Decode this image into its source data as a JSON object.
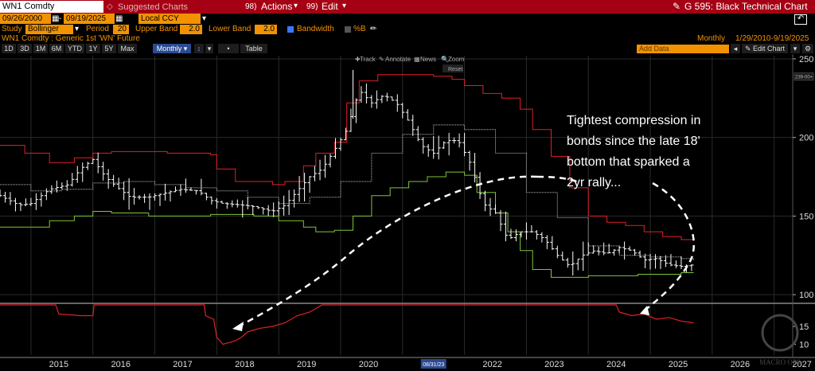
{
  "header": {
    "ticker_input": "WN1 Comdty",
    "suggested_charts": "Suggested Charts",
    "actions_label": "Actions",
    "actions_num": "98)",
    "edit_label": "Edit",
    "edit_num": "99)",
    "function_title": "G 595: Black Technical Chart"
  },
  "toolbar1": {
    "start_date": "09/26/2000",
    "end_date": "09/19/2025",
    "currency": "Local CCY"
  },
  "toolbar2": {
    "study_label": "Study",
    "study_value": "Bollinger",
    "period_label": "Period",
    "period_value": "20",
    "upper_label": "Upper Band",
    "upper_value": "2.0",
    "lower_label": "Lower Band",
    "lower_value": "2.0",
    "bandwidth_label": "Bandwidth",
    "percent_b_label": "%B"
  },
  "toolbar3": {
    "security_desc": "WN1 Comdty : Generic 1st 'WN' Future",
    "period_name": "Monthly",
    "date_range": "1/29/2010-9/19/2025"
  },
  "toolbar4": {
    "ranges": [
      "1D",
      "3D",
      "1M",
      "6M",
      "YTD",
      "1Y",
      "5Y",
      "Max"
    ],
    "frequency": "Monthly",
    "table_label": "Table",
    "add_data_placeholder": "Add Data",
    "edit_chart_label": "Edit Chart"
  },
  "chart_tools": {
    "track": "Track",
    "annotate": "Annotate",
    "news": "News",
    "zoom": "Zoom",
    "reset": "Reset"
  },
  "annotation": {
    "text_lines": [
      "Tightest compression in",
      "bonds since the late 18'",
      "bottom that sparked a",
      "2yr rally..."
    ]
  },
  "watermark": "MACRO OPS",
  "last_price_tag": "239-00+",
  "hover_date_tag": "08/31/23",
  "colors": {
    "titlebar": "#a50013",
    "accent_orange": "#f39200",
    "upper_band": "#e0202a",
    "lower_band": "#7fc53a",
    "moving_average": "#bfbfbf",
    "price_bars": "#ffffff",
    "bandwidth_line": "#e0202a"
  },
  "chart_data": [
    {
      "type": "line",
      "subtype": "ohlc-bars-with-bollinger-bands",
      "frequency": "monthly",
      "ylim": [
        95,
        252
      ],
      "yticks": [
        100,
        150,
        200,
        250
      ],
      "xticks": [
        "2015",
        "2016",
        "2017",
        "2018",
        "2019",
        "2020",
        "2021",
        "2022",
        "2023",
        "2024",
        "2025",
        "2026",
        "2027"
      ],
      "x_range_years": [
        2014.5,
        2027.3
      ],
      "grid": true,
      "series": [
        {
          "name": "Upper Band",
          "points": [
            [
              2014.5,
              195
            ],
            [
              2014.9,
              190
            ],
            [
              2015.3,
              184
            ],
            [
              2015.7,
              187
            ],
            [
              2016.0,
              190
            ],
            [
              2016.3,
              191
            ],
            [
              2016.9,
              191
            ],
            [
              2017.2,
              190
            ],
            [
              2017.9,
              189
            ],
            [
              2018.0,
              180
            ],
            [
              2018.3,
              172
            ],
            [
              2018.9,
              170
            ],
            [
              2019.1,
              172
            ],
            [
              2019.4,
              182
            ],
            [
              2019.6,
              190
            ],
            [
              2019.9,
              197
            ],
            [
              2020.1,
              222
            ],
            [
              2020.3,
              236
            ],
            [
              2020.6,
              240
            ],
            [
              2020.9,
              240
            ],
            [
              2021.2,
              240
            ],
            [
              2021.5,
              239
            ],
            [
              2021.8,
              237
            ],
            [
              2022.0,
              233
            ],
            [
              2022.3,
              228
            ],
            [
              2022.6,
              225
            ],
            [
              2022.9,
              218
            ],
            [
              2023.1,
              205
            ],
            [
              2023.4,
              188
            ],
            [
              2023.7,
              168
            ],
            [
              2024.0,
              150
            ],
            [
              2024.3,
              146
            ],
            [
              2024.6,
              144
            ],
            [
              2024.9,
              140
            ],
            [
              2025.2,
              137
            ],
            [
              2025.5,
              135
            ],
            [
              2025.7,
              134
            ]
          ]
        },
        {
          "name": "Lower Band",
          "points": [
            [
              2014.5,
              143
            ],
            [
              2014.9,
              143
            ],
            [
              2015.3,
              147
            ],
            [
              2015.7,
              150
            ],
            [
              2016.0,
              153
            ],
            [
              2016.3,
              152
            ],
            [
              2016.9,
              150
            ],
            [
              2017.2,
              150
            ],
            [
              2017.9,
              151
            ],
            [
              2018.2,
              151
            ],
            [
              2018.6,
              150
            ],
            [
              2019.0,
              147
            ],
            [
              2019.4,
              143
            ],
            [
              2019.6,
              140
            ],
            [
              2019.9,
              141
            ],
            [
              2020.2,
              150
            ],
            [
              2020.5,
              163
            ],
            [
              2020.8,
              168
            ],
            [
              2021.1,
              172
            ],
            [
              2021.4,
              175
            ],
            [
              2021.7,
              178
            ],
            [
              2022.0,
              176
            ],
            [
              2022.2,
              165
            ],
            [
              2022.5,
              152
            ],
            [
              2022.7,
              140
            ],
            [
              2022.9,
              128
            ],
            [
              2023.1,
              116
            ],
            [
              2023.4,
              111
            ],
            [
              2023.7,
              111
            ],
            [
              2024.0,
              112
            ],
            [
              2024.4,
              112
            ],
            [
              2024.8,
              113
            ],
            [
              2025.2,
              113
            ],
            [
              2025.5,
              114
            ],
            [
              2025.7,
              114
            ]
          ]
        },
        {
          "name": "Moving Average",
          "points": [
            [
              2014.5,
              170
            ],
            [
              2015.0,
              166
            ],
            [
              2015.5,
              167
            ],
            [
              2016.0,
              171
            ],
            [
              2016.5,
              172
            ],
            [
              2017.0,
              170
            ],
            [
              2017.5,
              168
            ],
            [
              2018.0,
              166
            ],
            [
              2018.5,
              162
            ],
            [
              2019.0,
              158
            ],
            [
              2019.5,
              162
            ],
            [
              2020.0,
              172
            ],
            [
              2020.5,
              190
            ],
            [
              2021.0,
              202
            ],
            [
              2021.5,
              208
            ],
            [
              2022.0,
              205
            ],
            [
              2022.5,
              190
            ],
            [
              2023.0,
              165
            ],
            [
              2023.5,
              149
            ],
            [
              2024.0,
              131
            ],
            [
              2024.5,
              125
            ],
            [
              2025.0,
              124
            ],
            [
              2025.5,
              123
            ],
            [
              2025.7,
              122
            ]
          ]
        },
        {
          "name": "Price",
          "points": [
            [
              2014.5,
              163
            ],
            [
              2014.8,
              157
            ],
            [
              2015.0,
              158
            ],
            [
              2015.3,
              167
            ],
            [
              2015.6,
              170
            ],
            [
              2015.8,
              180
            ],
            [
              2016.0,
              186
            ],
            [
              2016.2,
              175
            ],
            [
              2016.4,
              168
            ],
            [
              2016.6,
              162
            ],
            [
              2016.9,
              162
            ],
            [
              2017.1,
              164
            ],
            [
              2017.4,
              167
            ],
            [
              2017.7,
              166
            ],
            [
              2017.9,
              160
            ],
            [
              2018.1,
              158
            ],
            [
              2018.4,
              157
            ],
            [
              2018.6,
              156
            ],
            [
              2018.9,
              153
            ],
            [
              2019.1,
              157
            ],
            [
              2019.3,
              166
            ],
            [
              2019.5,
              175
            ],
            [
              2019.7,
              180
            ],
            [
              2019.9,
              192
            ],
            [
              2020.1,
              205
            ],
            [
              2020.3,
              230
            ],
            [
              2020.5,
              222
            ],
            [
              2020.7,
              227
            ],
            [
              2020.9,
              222
            ],
            [
              2021.1,
              210
            ],
            [
              2021.3,
              195
            ],
            [
              2021.5,
              190
            ],
            [
              2021.7,
              198
            ],
            [
              2021.9,
              198
            ],
            [
              2022.1,
              183
            ],
            [
              2022.3,
              158
            ],
            [
              2022.5,
              152
            ],
            [
              2022.7,
              135
            ],
            [
              2022.9,
              140
            ],
            [
              2023.1,
              140
            ],
            [
              2023.3,
              135
            ],
            [
              2023.5,
              125
            ],
            [
              2023.7,
              118
            ],
            [
              2023.9,
              125
            ],
            [
              2024.1,
              128
            ],
            [
              2024.3,
              126
            ],
            [
              2024.5,
              130
            ],
            [
              2024.7,
              128
            ],
            [
              2024.9,
              122
            ],
            [
              2025.1,
              123
            ],
            [
              2025.3,
              119
            ],
            [
              2025.5,
              118
            ],
            [
              2025.7,
              119
            ]
          ]
        }
      ]
    },
    {
      "type": "line",
      "subtype": "bollinger-bandwidth",
      "ylim": [
        7,
        21
      ],
      "yticks": [
        10,
        15
      ],
      "series": [
        {
          "name": "Bandwidth",
          "points": [
            [
              2014.5,
              21
            ],
            [
              2015.4,
              21
            ],
            [
              2015.45,
              18.5
            ],
            [
              2015.8,
              18
            ],
            [
              2016.0,
              18
            ],
            [
              2016.02,
              21
            ],
            [
              2017.8,
              21
            ],
            [
              2017.82,
              18
            ],
            [
              2017.95,
              17
            ],
            [
              2018.0,
              12
            ],
            [
              2018.1,
              10
            ],
            [
              2018.2,
              10.5
            ],
            [
              2018.3,
              11
            ],
            [
              2018.4,
              12
            ],
            [
              2018.5,
              13.5
            ],
            [
              2018.6,
              14
            ],
            [
              2018.7,
              14.5
            ],
            [
              2018.9,
              15
            ],
            [
              2019.1,
              16
            ],
            [
              2019.3,
              18
            ],
            [
              2019.5,
              19
            ],
            [
              2019.7,
              21
            ],
            [
              2024.45,
              21
            ],
            [
              2024.5,
              19
            ],
            [
              2024.7,
              18
            ],
            [
              2024.9,
              18.5
            ],
            [
              2025.1,
              17
            ],
            [
              2025.3,
              17.5
            ],
            [
              2025.5,
              16.5
            ],
            [
              2025.7,
              16
            ]
          ]
        }
      ]
    }
  ]
}
